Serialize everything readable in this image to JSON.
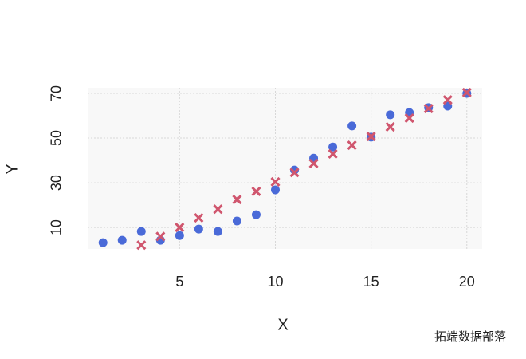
{
  "chart_data": {
    "type": "scatter",
    "x_label": "X",
    "y_label": "Y",
    "x": [
      1,
      2,
      3,
      4,
      5,
      6,
      7,
      8,
      9,
      10,
      11,
      12,
      13,
      14,
      15,
      16,
      17,
      18,
      19,
      20
    ],
    "series": [
      {
        "color": "#4a6ad8",
        "marker": "circle",
        "values": [
          3.2,
          4.3,
          8.2,
          4.3,
          6.4,
          9.3,
          8.2,
          12.9,
          15.7,
          26.8,
          35.7,
          41,
          46,
          55.4,
          50.4,
          60.4,
          61.4,
          63.6,
          64.3,
          70
        ]
      },
      {
        "color": "#d0566e",
        "marker": "x",
        "values": [
          null,
          null,
          2.1,
          6,
          10,
          14.3,
          18.2,
          22.5,
          26.1,
          30.4,
          34.6,
          38.6,
          42.9,
          46.8,
          50.7,
          55,
          58.9,
          63.2,
          67.1,
          70.4
        ]
      }
    ],
    "xlim": [
      0.2,
      20.8
    ],
    "ylim": [
      0.4,
      72.5
    ],
    "xticks": [
      5,
      10,
      15,
      20
    ],
    "yticks": [
      10,
      30,
      50,
      70
    ],
    "grid": true,
    "watermark": "拓端数据部落"
  }
}
